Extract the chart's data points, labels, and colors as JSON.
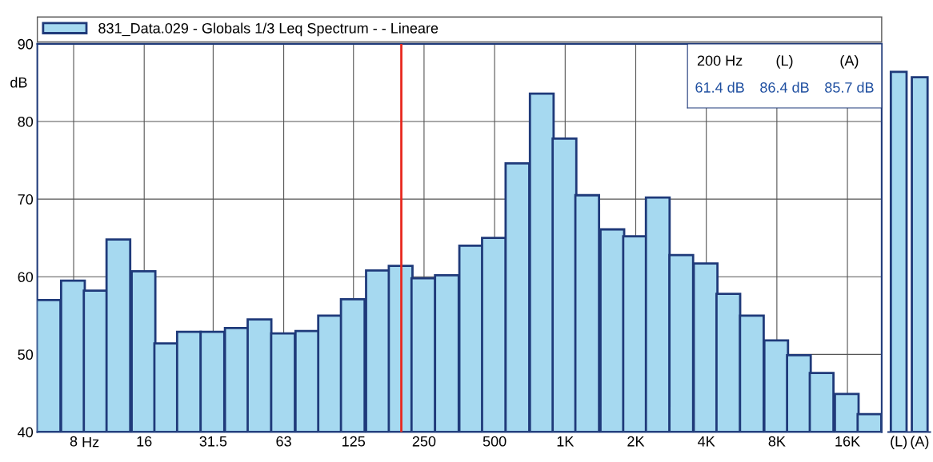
{
  "chart_data": [
    {
      "type": "bar",
      "xlabel": "Hz",
      "ylabel": "dB",
      "log": "x",
      "x": [
        6.3,
        8,
        10,
        12.5,
        16,
        20,
        25,
        31.5,
        40,
        50,
        63,
        80,
        100,
        125,
        160,
        200,
        250,
        315,
        400,
        500,
        630,
        800,
        1000,
        1250,
        1600,
        2000,
        2500,
        3150,
        4000,
        5000,
        6300,
        8000,
        10000,
        12500,
        16000,
        20000
      ],
      "series": [
        {
          "name": "831_Data.029 - Globals 1/3 Leq Spectrum - - Lineare",
          "color": "#a6d9f0",
          "values": [
            57.0,
            59.5,
            58.2,
            64.8,
            60.7,
            51.4,
            52.9,
            52.9,
            53.4,
            54.5,
            52.7,
            53.0,
            55.0,
            57.1,
            60.8,
            61.4,
            59.8,
            60.2,
            64.0,
            65.0,
            74.6,
            83.6,
            77.8,
            70.5,
            66.1,
            65.2,
            70.2,
            62.8,
            61.7,
            57.8,
            55.0,
            51.8,
            49.9,
            47.6,
            44.9,
            42.3
          ]
        }
      ],
      "xlim": [
        5.6,
        22400
      ],
      "xticks": [
        8,
        16,
        31.5,
        63,
        125,
        250,
        500,
        {
          "value": 1000,
          "label": "1K"
        },
        {
          "value": 2000,
          "label": "2K"
        },
        {
          "value": 4000,
          "label": "4K"
        },
        {
          "value": 8000,
          "label": "8K"
        },
        {
          "value": 16000,
          "label": "16K"
        }
      ],
      "ylim": [
        40,
        90
      ],
      "yticks": [
        40,
        50,
        60,
        70,
        80,
        90
      ],
      "grid": true,
      "legend": "top",
      "ref_lines": [
        {
          "axis": "x",
          "value": 200,
          "color": "#e8281e"
        }
      ],
      "annotations": [
        "200 Hz",
        "(L)",
        "(A)",
        "61.4 dB",
        "86.4 dB",
        "85.7 dB"
      ]
    },
    {
      "type": "bar",
      "categories": [
        "(L)",
        "(A)"
      ],
      "values": [
        86.4,
        85.7
      ],
      "color": "#a6d9f0",
      "ylim": [
        40,
        90
      ],
      "tick_labels": "x"
    }
  ]
}
